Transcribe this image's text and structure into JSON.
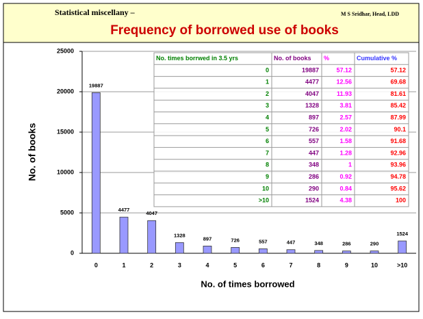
{
  "slide": {
    "series_title": "Statistical miscellany –",
    "author": "M S Sridhar, Head, LDD"
  },
  "chart_data": {
    "type": "bar",
    "title": "Frequency of borrowed use of books",
    "x_label": "No. of times borrowed",
    "y_label": "No. of books",
    "categories": [
      "0",
      "1",
      "2",
      "3",
      "4",
      "5",
      "6",
      "7",
      "8",
      "9",
      "10",
      ">10"
    ],
    "values": [
      19887,
      4477,
      4047,
      1328,
      897,
      726,
      557,
      447,
      348,
      286,
      290,
      1524
    ],
    "color": "#9999ff",
    "ylim": [
      0,
      25000
    ],
    "yticks": [
      0,
      5000,
      10000,
      15000,
      20000,
      25000
    ],
    "grid": true
  },
  "table": {
    "header": [
      "No. times borrwed in 3.5 yrs",
      "No. of books",
      "%",
      "Cumulative %"
    ],
    "rows": [
      [
        "0",
        "19887",
        "57.12",
        "57.12"
      ],
      [
        "1",
        "4477",
        "12.56",
        "69.68"
      ],
      [
        "2",
        "4047",
        "11.93",
        "81.61"
      ],
      [
        "3",
        "1328",
        "3.81",
        "85.42"
      ],
      [
        "4",
        "897",
        "2.57",
        "87.99"
      ],
      [
        "5",
        "726",
        "2.02",
        "90.1"
      ],
      [
        "6",
        "557",
        "1.58",
        "91.68"
      ],
      [
        "7",
        "447",
        "1.28",
        "92.96"
      ],
      [
        "8",
        "348",
        "1",
        "93.96"
      ],
      [
        "9",
        "286",
        "0.92",
        "94.78"
      ],
      [
        "10",
        "290",
        "0.84",
        "95.62"
      ],
      [
        ">10",
        "1524",
        "4.38",
        "100"
      ]
    ]
  }
}
